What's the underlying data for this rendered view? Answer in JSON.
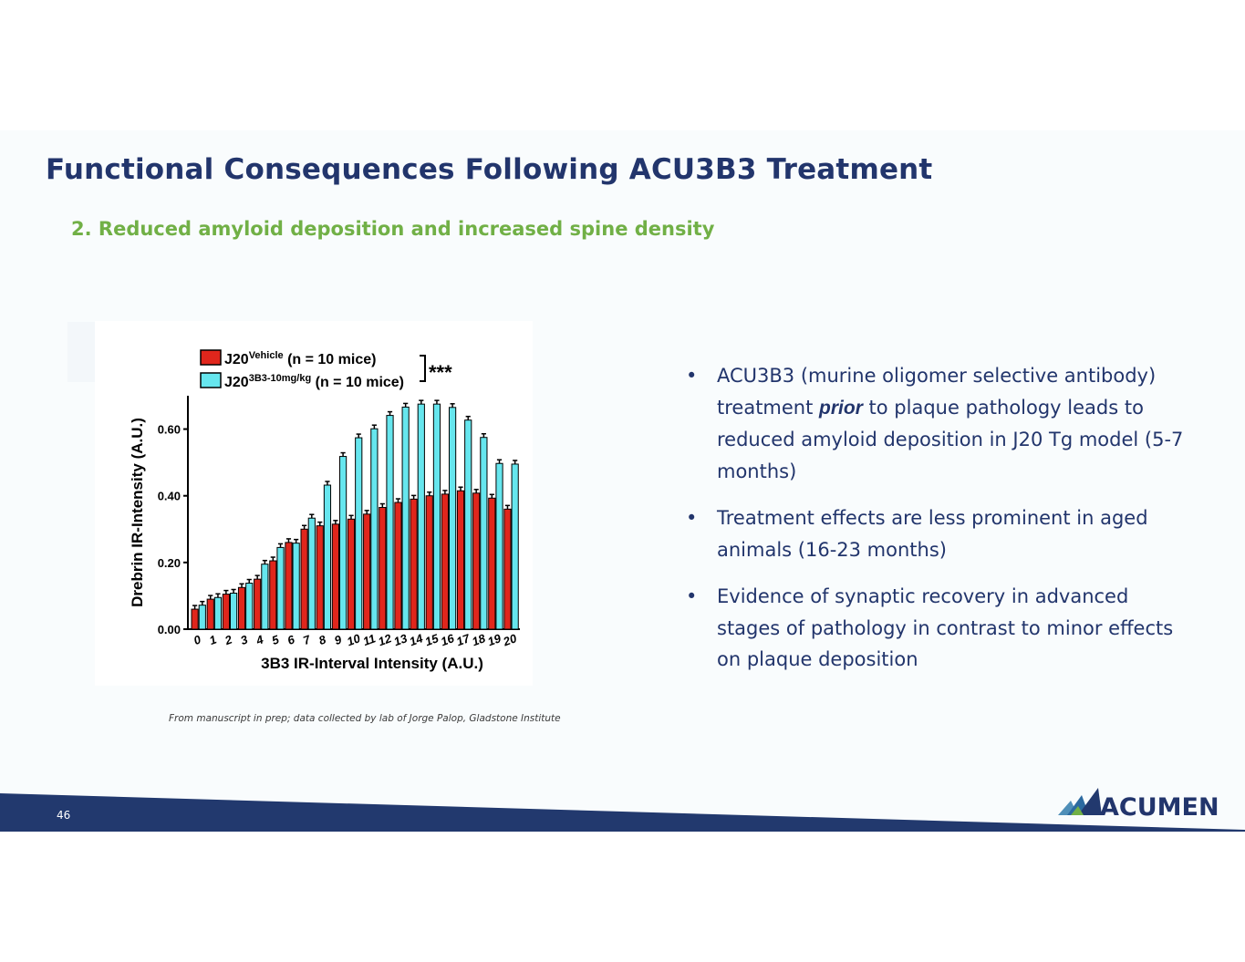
{
  "title": "Functional Consequences Following ACU3B3 Treatment",
  "subtitle": "2. Reduced amyloid deposition and increased spine density",
  "bullets": [
    {
      "before": "ACU3B3 (murine oligomer selective antibody) treatment ",
      "emph": "prior",
      "after": " to plaque pathology leads to reduced amyloid deposition in J20 Tg model (5-7 months)"
    },
    {
      "before": "Treatment effects are less prominent in aged animals (16-23 months)",
      "emph": "",
      "after": ""
    },
    {
      "before": "Evidence of synaptic recovery in advanced stages of pathology in contrast to minor effects on plaque deposition",
      "emph": "",
      "after": ""
    }
  ],
  "bullet_symbol": "•",
  "source_note": "From manuscript in prep; data collected by lab of Jorge Palop, Gladstone Institute",
  "page_number": "46",
  "logo_text": "ACUMEN",
  "colors": {
    "title": "#22356c",
    "subtitle": "#71b046",
    "footer_band": "#22396e",
    "vehicle": "#e0261c",
    "treated": "#66e6ee"
  },
  "chart_data": {
    "type": "bar",
    "xlabel": "3B3 IR-Interval Intensity (A.U.)",
    "ylabel": "Drebrin IR-Intensity (A.U.)",
    "ylim": [
      0,
      0.7
    ],
    "yticks": [
      "0.00",
      "0.20",
      "0.40",
      "0.60"
    ],
    "significance": "***",
    "categories": [
      "0",
      "1",
      "2",
      "3",
      "4",
      "5",
      "6",
      "7",
      "8",
      "9",
      "10",
      "11",
      "12",
      "13",
      "14",
      "15",
      "16",
      "17",
      "18",
      "19",
      "20"
    ],
    "series": [
      {
        "legend_label": "J20",
        "legend_sup": "Vehicle",
        "legend_n": "(n = 10 mice)",
        "color": "#e0261c",
        "values": [
          0.06,
          0.09,
          0.105,
          0.125,
          0.15,
          0.205,
          0.26,
          0.3,
          0.31,
          0.315,
          0.33,
          0.345,
          0.365,
          0.38,
          0.39,
          0.4,
          0.405,
          0.415,
          0.408,
          0.393,
          0.36
        ]
      },
      {
        "legend_label": "J20",
        "legend_sup": "3B3-10mg/kg",
        "legend_n": "(n = 10 mice)",
        "color": "#66e6ee",
        "values": [
          0.072,
          0.095,
          0.108,
          0.138,
          0.195,
          0.245,
          0.258,
          0.333,
          0.432,
          0.518,
          0.574,
          0.601,
          0.641,
          0.666,
          0.675,
          0.675,
          0.665,
          0.627,
          0.575,
          0.497,
          0.495
        ]
      }
    ]
  }
}
